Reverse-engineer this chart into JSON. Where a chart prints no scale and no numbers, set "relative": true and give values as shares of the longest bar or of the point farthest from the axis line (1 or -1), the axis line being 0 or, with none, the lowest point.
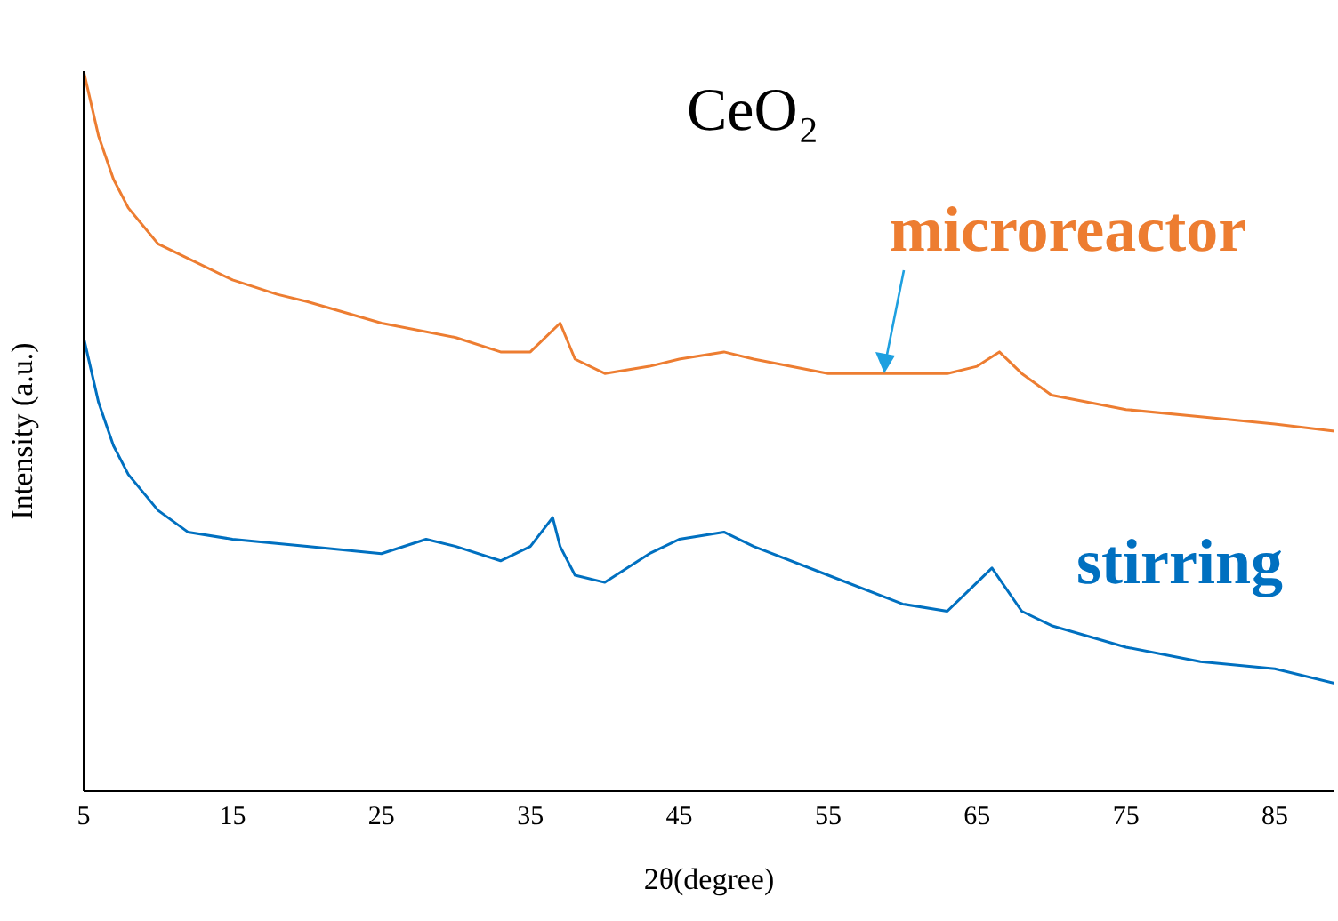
{
  "chart_data": {
    "type": "line",
    "title": "CeO₂",
    "xlabel": "2θ(degree)",
    "ylabel": "Intensity (a.u.)",
    "relative": true,
    "xlim": [
      5,
      89
    ],
    "xticks": [
      5,
      15,
      25,
      35,
      45,
      55,
      65,
      75,
      85
    ],
    "marker": "none",
    "line_style": "solid",
    "series": [
      {
        "name": "microreactor",
        "color": "#ed7d31",
        "x": [
          5,
          6,
          7,
          8,
          10,
          12,
          15,
          18,
          20,
          25,
          30,
          33,
          35,
          37,
          38,
          40,
          43,
          45,
          48,
          50,
          55,
          58,
          60,
          63,
          65,
          66.5,
          68,
          70,
          75,
          80,
          85,
          89
        ],
        "values": [
          1.0,
          0.91,
          0.85,
          0.81,
          0.76,
          0.74,
          0.71,
          0.69,
          0.68,
          0.65,
          0.63,
          0.61,
          0.61,
          0.65,
          0.6,
          0.58,
          0.59,
          0.6,
          0.61,
          0.6,
          0.58,
          0.58,
          0.58,
          0.58,
          0.59,
          0.61,
          0.58,
          0.55,
          0.53,
          0.52,
          0.51,
          0.5
        ]
      },
      {
        "name": "stirring",
        "color": "#0070c0",
        "x": [
          5,
          6,
          7,
          8,
          10,
          12,
          15,
          20,
          25,
          28,
          30,
          33,
          35,
          36.5,
          37,
          38,
          40,
          43,
          45,
          48,
          50,
          55,
          60,
          63,
          65,
          66,
          68,
          70,
          75,
          80,
          85,
          89
        ],
        "values": [
          0.63,
          0.54,
          0.48,
          0.44,
          0.39,
          0.36,
          0.35,
          0.34,
          0.33,
          0.35,
          0.34,
          0.32,
          0.34,
          0.38,
          0.34,
          0.3,
          0.29,
          0.33,
          0.35,
          0.36,
          0.34,
          0.3,
          0.26,
          0.25,
          0.29,
          0.31,
          0.25,
          0.23,
          0.2,
          0.18,
          0.17,
          0.15
        ]
      }
    ]
  }
}
